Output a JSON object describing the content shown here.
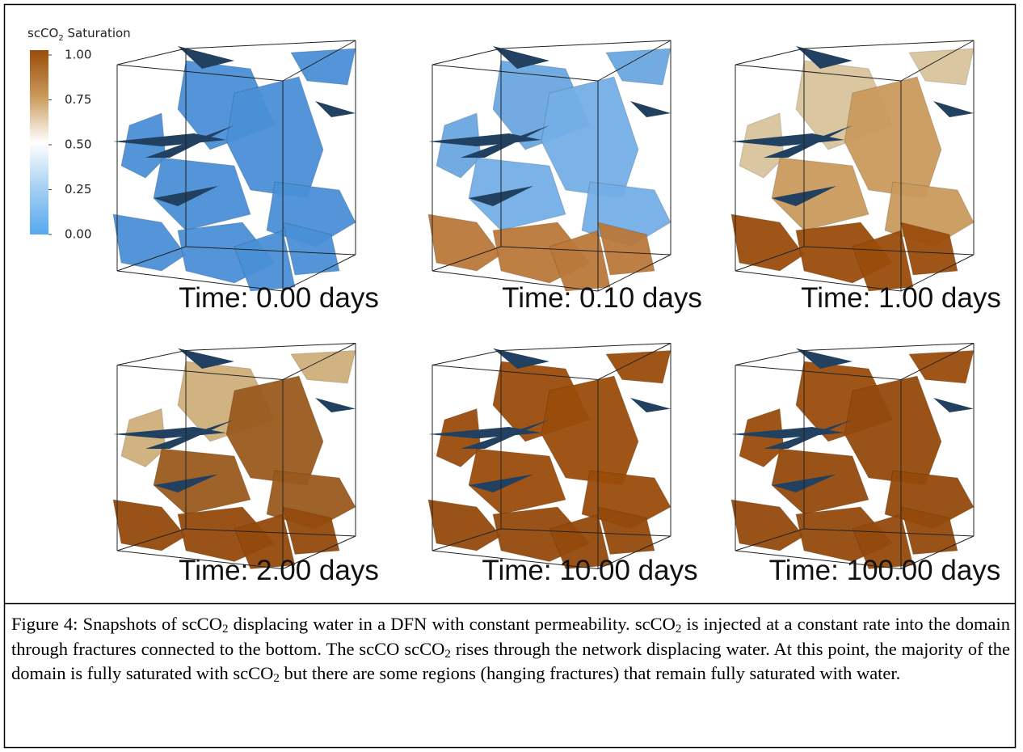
{
  "figure": {
    "colorbar": {
      "title": {
        "prefix": "scCO",
        "sub": "2",
        "suffix": " Saturation"
      },
      "lim": [
        0,
        1
      ],
      "ticks": [
        {
          "value": 1,
          "label": "1.00"
        },
        {
          "value": 0.75,
          "label": "0.75"
        },
        {
          "value": 0.5,
          "label": "0.50"
        },
        {
          "value": 0.25,
          "label": "0.25"
        },
        {
          "value": 0,
          "label": "0.00"
        }
      ]
    },
    "panels": [
      {
        "label": "Time: 0.00 days"
      },
      {
        "label": "Time: 0.10 days"
      },
      {
        "label": "Time: 1.00 days"
      },
      {
        "label": "Time: 2.00 days"
      },
      {
        "label": "Time: 10.00 days"
      },
      {
        "label": "Time: 100.00 days"
      }
    ]
  },
  "caption": [
    {
      "text": "Figure 4: Snapshots of scCO"
    },
    {
      "sub": "2"
    },
    {
      "text": " displacing water in a DFN with constant permeability. scCO"
    },
    {
      "sub": "2"
    },
    {
      "text": " is injected at a constant rate into the domain through fractures connected to the bottom. The scCO scCO"
    },
    {
      "sub": "2"
    },
    {
      "text": " rises through the network displacing water. At this point, the majority of the domain is fully saturated with scCO"
    },
    {
      "sub": "2"
    },
    {
      "text": " but there are some regions (hanging fractures) that remain fully saturated with water."
    }
  ]
}
